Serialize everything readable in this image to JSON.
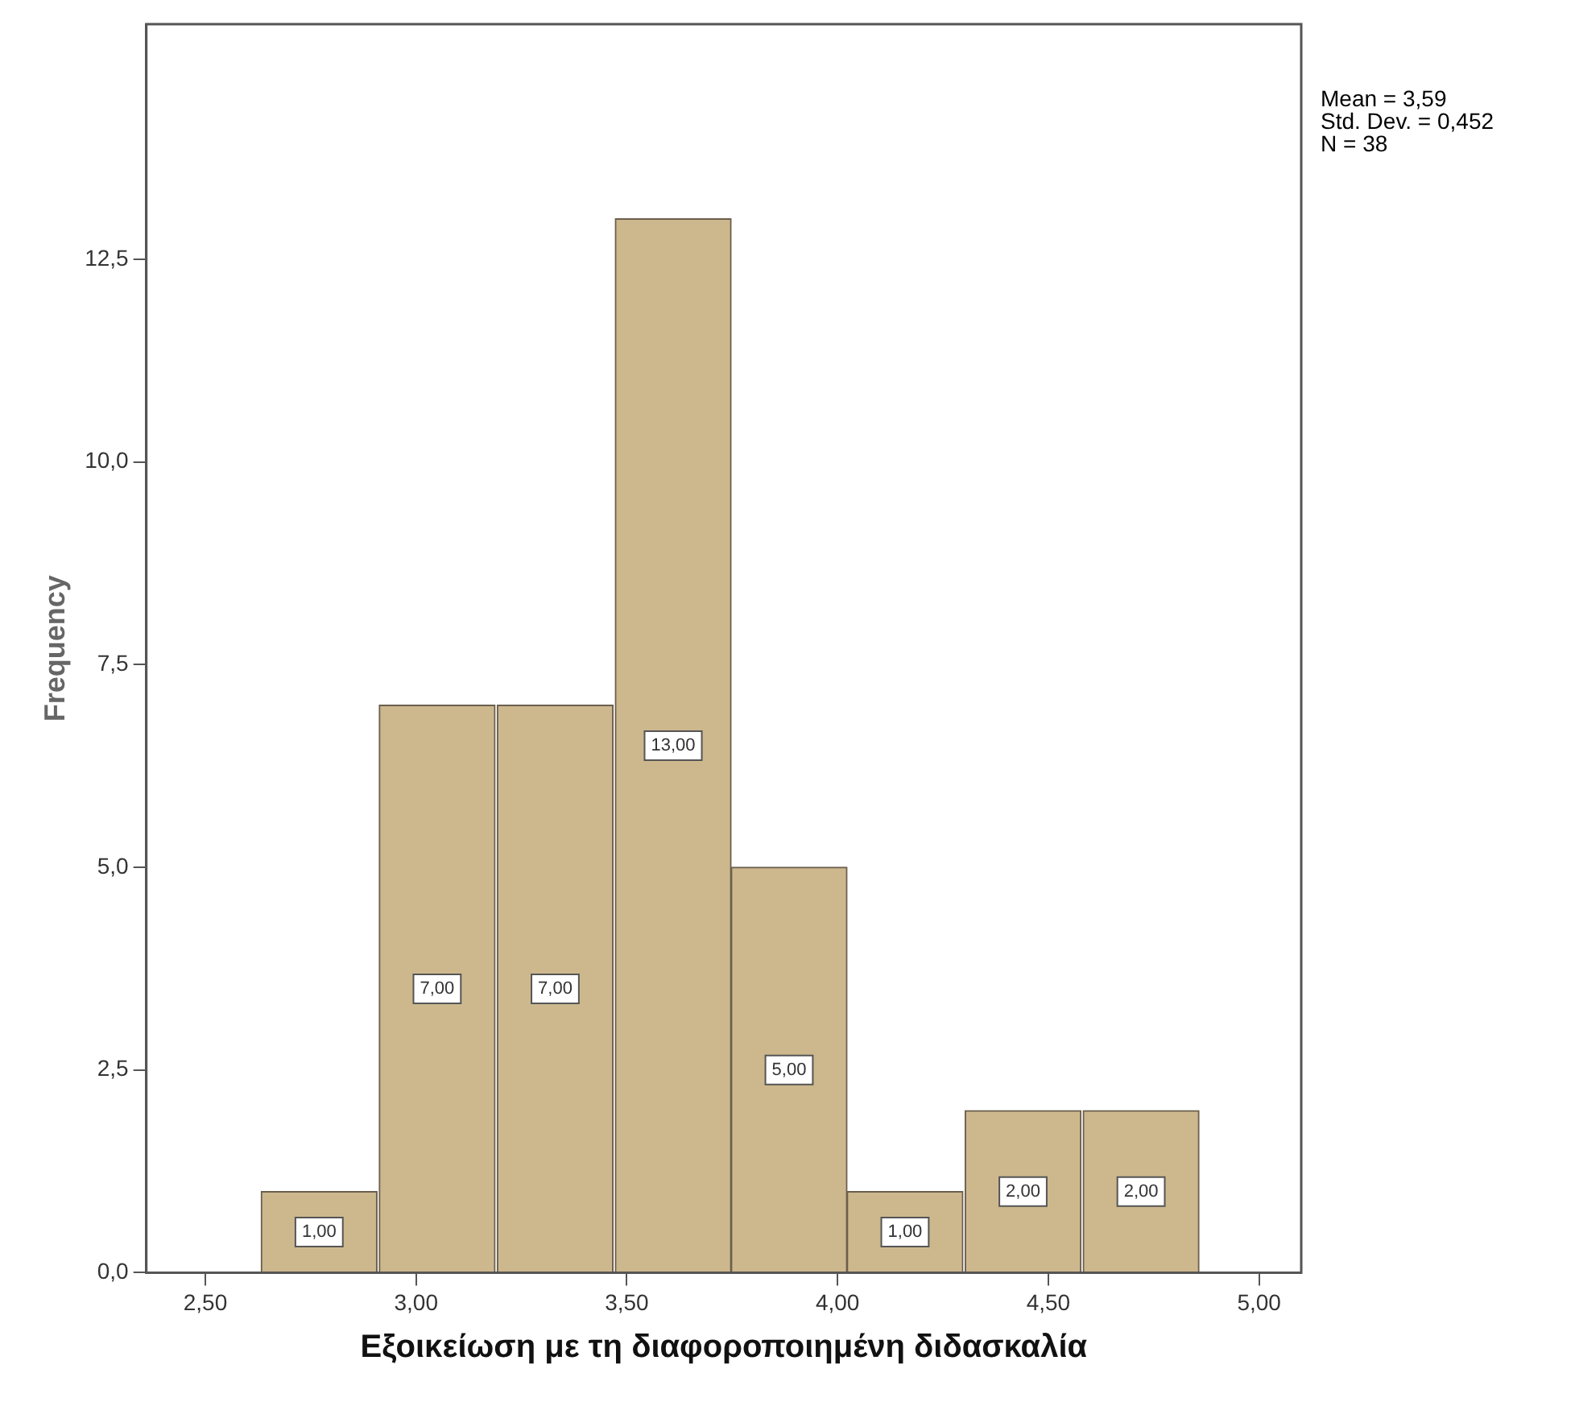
{
  "chart_data": {
    "type": "histogram",
    "xlabel": "Εξοικείωση με τη διαφοροποιημένη διδασκαλία",
    "ylabel": "Frequency",
    "bins": [
      2.63,
      2.91,
      3.19,
      3.47,
      3.75,
      4.02,
      4.3,
      4.58,
      4.86
    ],
    "values": [
      1,
      7,
      7,
      13,
      5,
      1,
      2,
      2
    ],
    "value_labels": [
      "1,00",
      "7,00",
      "7,00",
      "13,00",
      "5,00",
      "1,00",
      "2,00",
      "2,00"
    ],
    "color": "#cdb88e",
    "xlim": [
      2.36,
      5.1
    ],
    "xticks": [
      {
        "value": 2.5,
        "label": "2,50"
      },
      {
        "value": 3,
        "label": "3,00"
      },
      {
        "value": 3.5,
        "label": "3,50"
      },
      {
        "value": 4,
        "label": "4,00"
      },
      {
        "value": 4.5,
        "label": "4,50"
      },
      {
        "value": 5,
        "label": "5,00"
      }
    ],
    "ylim": [
      0,
      15.4
    ],
    "yticks": [
      {
        "value": 0,
        "label": "0,0"
      },
      {
        "value": 2.5,
        "label": "2,5"
      },
      {
        "value": 5,
        "label": "5,0"
      },
      {
        "value": 7.5,
        "label": "7,5"
      },
      {
        "value": 10,
        "label": "10,0"
      },
      {
        "value": 12.5,
        "label": "12,5"
      }
    ],
    "grid": false,
    "legend": false,
    "annotations": [
      "Mean = 3,59",
      "Std. Dev. = 0,452",
      "N = 38"
    ]
  }
}
